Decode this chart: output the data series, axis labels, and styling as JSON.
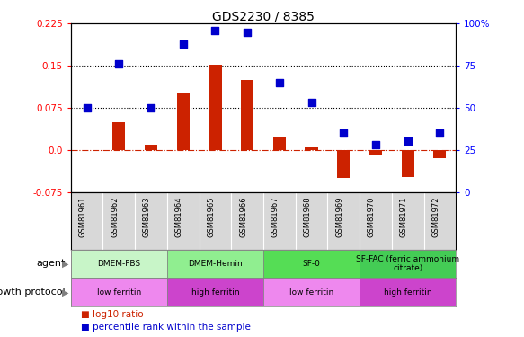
{
  "title": "GDS2230 / 8385",
  "samples": [
    "GSM81961",
    "GSM81962",
    "GSM81963",
    "GSM81964",
    "GSM81965",
    "GSM81966",
    "GSM81967",
    "GSM81968",
    "GSM81969",
    "GSM81970",
    "GSM81971",
    "GSM81972"
  ],
  "log10_ratio": [
    0.0,
    0.05,
    0.01,
    0.1,
    0.152,
    0.125,
    0.022,
    0.005,
    -0.05,
    -0.008,
    -0.048,
    -0.015
  ],
  "percentile_rank": [
    50,
    76,
    50,
    88,
    96,
    95,
    65,
    53,
    35,
    28,
    30,
    35
  ],
  "ylim_left": [
    -0.075,
    0.225
  ],
  "ylim_right": [
    0,
    100
  ],
  "yticks_left": [
    -0.075,
    0.0,
    0.075,
    0.15,
    0.225
  ],
  "yticks_right": [
    0,
    25,
    50,
    75,
    100
  ],
  "hlines": [
    0.075,
    0.15
  ],
  "agent_groups": [
    {
      "label": "DMEM-FBS",
      "start": 0,
      "end": 3,
      "color": "#c8f5c8"
    },
    {
      "label": "DMEM-Hemin",
      "start": 3,
      "end": 6,
      "color": "#90ee90"
    },
    {
      "label": "SF-0",
      "start": 6,
      "end": 9,
      "color": "#55dd55"
    },
    {
      "label": "SF-FAC (ferric ammonium\ncitrate)",
      "start": 9,
      "end": 12,
      "color": "#44cc55"
    }
  ],
  "growth_groups": [
    {
      "label": "low ferritin",
      "start": 0,
      "end": 3,
      "color": "#ee88ee"
    },
    {
      "label": "high ferritin",
      "start": 3,
      "end": 6,
      "color": "#cc44cc"
    },
    {
      "label": "low ferritin",
      "start": 6,
      "end": 9,
      "color": "#ee88ee"
    },
    {
      "label": "high ferritin",
      "start": 9,
      "end": 12,
      "color": "#cc44cc"
    }
  ],
  "bar_color": "#cc2200",
  "dot_color": "#0000cc",
  "bar_width": 0.4,
  "dot_size": 40,
  "sample_bg": "#d8d8d8"
}
